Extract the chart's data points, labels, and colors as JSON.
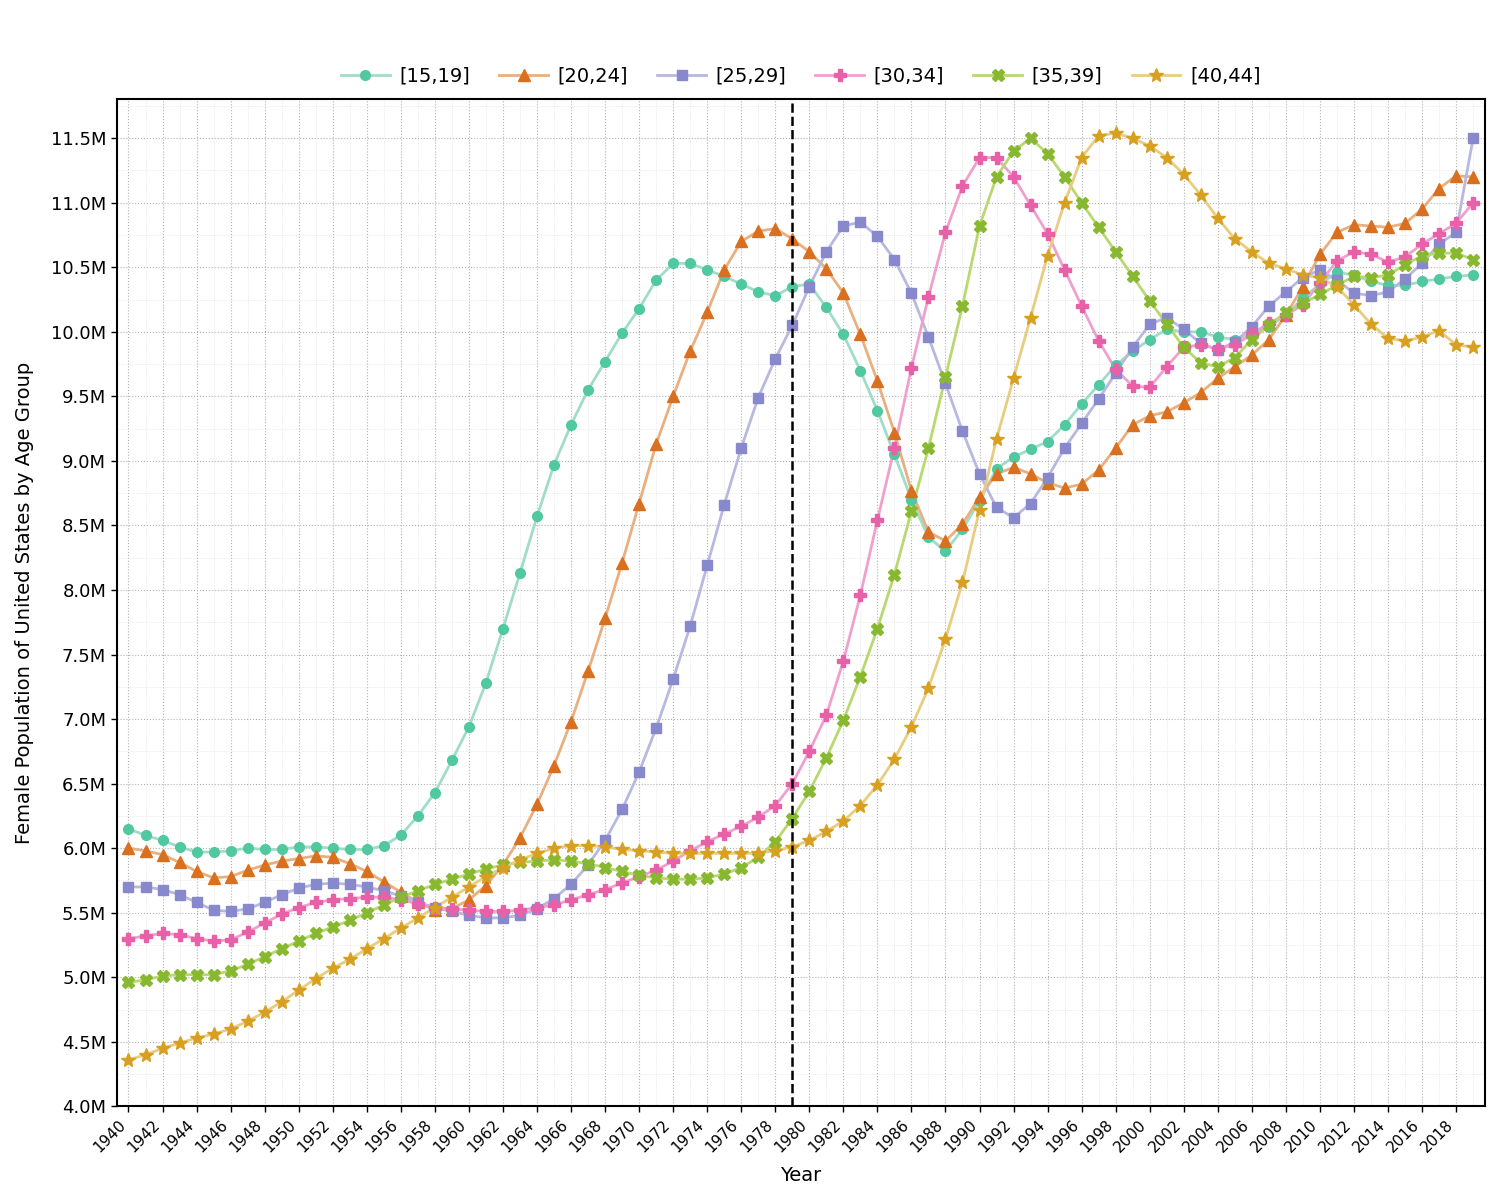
{
  "title": "",
  "ylabel": "Female Population of United States by Age Group",
  "xlabel": "Year",
  "dashed_line_year": 1979,
  "ylim": [
    4000000,
    11800000
  ],
  "yticks": [
    4000000,
    4500000,
    5000000,
    5500000,
    6000000,
    6500000,
    7000000,
    7500000,
    8000000,
    8500000,
    9000000,
    9500000,
    10000000,
    10500000,
    11000000,
    11500000
  ],
  "ytick_labels": [
    "4.0M",
    "4.5M",
    "5.0M",
    "5.5M",
    "6.0M",
    "6.5M",
    "7.0M",
    "7.5M",
    "8.0M",
    "8.5M",
    "9.0M",
    "9.5M",
    "10.0M",
    "10.5M",
    "11.0M",
    "11.5M"
  ],
  "series": [
    {
      "label": "[15,19]",
      "color": "#50c8a0",
      "line_color": "#a0dcc8",
      "marker": "o",
      "markersize": 7,
      "linewidth": 2.0,
      "years": [
        1940,
        1941,
        1942,
        1943,
        1944,
        1945,
        1946,
        1947,
        1948,
        1949,
        1950,
        1951,
        1952,
        1953,
        1954,
        1955,
        1956,
        1957,
        1958,
        1959,
        1960,
        1961,
        1962,
        1963,
        1964,
        1965,
        1966,
        1967,
        1968,
        1969,
        1970,
        1971,
        1972,
        1973,
        1974,
        1975,
        1976,
        1977,
        1978,
        1979,
        1980,
        1981,
        1982,
        1983,
        1984,
        1985,
        1986,
        1987,
        1988,
        1989,
        1990,
        1991,
        1992,
        1993,
        1994,
        1995,
        1996,
        1997,
        1998,
        1999,
        2000,
        2001,
        2002,
        2003,
        2004,
        2005,
        2006,
        2007,
        2008,
        2009,
        2010,
        2011,
        2012,
        2013,
        2014,
        2015,
        2016,
        2017,
        2018,
        2019
      ],
      "values": [
        6150000,
        6100000,
        6060000,
        6010000,
        5970000,
        5970000,
        5980000,
        6000000,
        5990000,
        5990000,
        6010000,
        6010000,
        6000000,
        5990000,
        5990000,
        6020000,
        6100000,
        6250000,
        6430000,
        6680000,
        6940000,
        7280000,
        7700000,
        8130000,
        8570000,
        8970000,
        9280000,
        9550000,
        9770000,
        9990000,
        10180000,
        10400000,
        10530000,
        10530000,
        10480000,
        10430000,
        10370000,
        10310000,
        10280000,
        10350000,
        10370000,
        10190000,
        9980000,
        9700000,
        9390000,
        9050000,
        8700000,
        8410000,
        8300000,
        8470000,
        8690000,
        8940000,
        9030000,
        9090000,
        9150000,
        9280000,
        9440000,
        9590000,
        9740000,
        9850000,
        9940000,
        10020000,
        10000000,
        10000000,
        9960000,
        9940000,
        9980000,
        10040000,
        10130000,
        10260000,
        10370000,
        10460000,
        10440000,
        10390000,
        10360000,
        10360000,
        10390000,
        10410000,
        10430000,
        10440000
      ]
    },
    {
      "label": "[20,24]",
      "color": "#d97020",
      "line_color": "#e8b080",
      "marker": "^",
      "markersize": 8,
      "linewidth": 2.0,
      "years": [
        1940,
        1941,
        1942,
        1943,
        1944,
        1945,
        1946,
        1947,
        1948,
        1949,
        1950,
        1951,
        1952,
        1953,
        1954,
        1955,
        1956,
        1957,
        1958,
        1959,
        1960,
        1961,
        1962,
        1963,
        1964,
        1965,
        1966,
        1967,
        1968,
        1969,
        1970,
        1971,
        1972,
        1973,
        1974,
        1975,
        1976,
        1977,
        1978,
        1979,
        1980,
        1981,
        1982,
        1983,
        1984,
        1985,
        1986,
        1987,
        1988,
        1989,
        1990,
        1991,
        1992,
        1993,
        1994,
        1995,
        1996,
        1997,
        1998,
        1999,
        2000,
        2001,
        2002,
        2003,
        2004,
        2005,
        2006,
        2007,
        2008,
        2009,
        2010,
        2011,
        2012,
        2013,
        2014,
        2015,
        2016,
        2017,
        2018,
        2019
      ],
      "values": [
        6000000,
        5980000,
        5950000,
        5890000,
        5820000,
        5770000,
        5780000,
        5830000,
        5870000,
        5900000,
        5920000,
        5940000,
        5930000,
        5880000,
        5820000,
        5740000,
        5660000,
        5580000,
        5520000,
        5530000,
        5600000,
        5710000,
        5870000,
        6080000,
        6340000,
        6640000,
        6980000,
        7370000,
        7780000,
        8210000,
        8670000,
        9130000,
        9500000,
        9850000,
        10150000,
        10480000,
        10700000,
        10780000,
        10800000,
        10720000,
        10620000,
        10490000,
        10300000,
        9980000,
        9620000,
        9220000,
        8770000,
        8450000,
        8380000,
        8510000,
        8720000,
        8900000,
        8950000,
        8900000,
        8830000,
        8790000,
        8820000,
        8930000,
        9100000,
        9280000,
        9350000,
        9380000,
        9450000,
        9530000,
        9640000,
        9730000,
        9820000,
        9940000,
        10130000,
        10350000,
        10600000,
        10770000,
        10830000,
        10820000,
        10810000,
        10840000,
        10950000,
        11110000,
        11210000,
        11200000
      ]
    },
    {
      "label": "[25,29]",
      "color": "#8888cc",
      "line_color": "#b8b8e0",
      "marker": "s",
      "markersize": 7,
      "linewidth": 2.0,
      "years": [
        1940,
        1941,
        1942,
        1943,
        1944,
        1945,
        1946,
        1947,
        1948,
        1949,
        1950,
        1951,
        1952,
        1953,
        1954,
        1955,
        1956,
        1957,
        1958,
        1959,
        1960,
        1961,
        1962,
        1963,
        1964,
        1965,
        1966,
        1967,
        1968,
        1969,
        1970,
        1971,
        1972,
        1973,
        1974,
        1975,
        1976,
        1977,
        1978,
        1979,
        1980,
        1981,
        1982,
        1983,
        1984,
        1985,
        1986,
        1987,
        1988,
        1989,
        1990,
        1991,
        1992,
        1993,
        1994,
        1995,
        1996,
        1997,
        1998,
        1999,
        2000,
        2001,
        2002,
        2003,
        2004,
        2005,
        2006,
        2007,
        2008,
        2009,
        2010,
        2011,
        2012,
        2013,
        2014,
        2015,
        2016,
        2017,
        2018,
        2019
      ],
      "values": [
        5700000,
        5700000,
        5680000,
        5640000,
        5580000,
        5520000,
        5510000,
        5530000,
        5580000,
        5640000,
        5690000,
        5720000,
        5730000,
        5720000,
        5700000,
        5670000,
        5630000,
        5580000,
        5540000,
        5510000,
        5480000,
        5460000,
        5460000,
        5480000,
        5530000,
        5610000,
        5720000,
        5870000,
        6060000,
        6300000,
        6590000,
        6930000,
        7310000,
        7720000,
        8190000,
        8660000,
        9100000,
        9490000,
        9790000,
        10050000,
        10350000,
        10620000,
        10820000,
        10850000,
        10740000,
        10560000,
        10300000,
        9960000,
        9600000,
        9230000,
        8900000,
        8640000,
        8560000,
        8670000,
        8870000,
        9100000,
        9290000,
        9480000,
        9680000,
        9880000,
        10060000,
        10110000,
        10020000,
        9910000,
        9860000,
        9920000,
        10040000,
        10200000,
        10310000,
        10420000,
        10480000,
        10400000,
        10300000,
        10280000,
        10310000,
        10410000,
        10530000,
        10680000,
        10770000,
        11500000
      ]
    },
    {
      "label": "[30,34]",
      "color": "#e860a8",
      "line_color": "#f0a0cc",
      "marker": "P",
      "markersize": 8,
      "linewidth": 2.0,
      "years": [
        1940,
        1941,
        1942,
        1943,
        1944,
        1945,
        1946,
        1947,
        1948,
        1949,
        1950,
        1951,
        1952,
        1953,
        1954,
        1955,
        1956,
        1957,
        1958,
        1959,
        1960,
        1961,
        1962,
        1963,
        1964,
        1965,
        1966,
        1967,
        1968,
        1969,
        1970,
        1971,
        1972,
        1973,
        1974,
        1975,
        1976,
        1977,
        1978,
        1979,
        1980,
        1981,
        1982,
        1983,
        1984,
        1985,
        1986,
        1987,
        1988,
        1989,
        1990,
        1991,
        1992,
        1993,
        1994,
        1995,
        1996,
        1997,
        1998,
        1999,
        2000,
        2001,
        2002,
        2003,
        2004,
        2005,
        2006,
        2007,
        2008,
        2009,
        2010,
        2011,
        2012,
        2013,
        2014,
        2015,
        2016,
        2017,
        2018,
        2019
      ],
      "values": [
        5300000,
        5320000,
        5340000,
        5330000,
        5300000,
        5280000,
        5290000,
        5350000,
        5420000,
        5490000,
        5540000,
        5580000,
        5600000,
        5610000,
        5620000,
        5620000,
        5600000,
        5570000,
        5540000,
        5530000,
        5520000,
        5510000,
        5510000,
        5520000,
        5540000,
        5560000,
        5600000,
        5640000,
        5680000,
        5730000,
        5780000,
        5830000,
        5900000,
        5980000,
        6050000,
        6110000,
        6170000,
        6240000,
        6330000,
        6500000,
        6750000,
        7030000,
        7450000,
        7960000,
        8540000,
        9100000,
        9720000,
        10270000,
        10770000,
        11130000,
        11350000,
        11350000,
        11200000,
        10980000,
        10760000,
        10480000,
        10200000,
        9930000,
        9710000,
        9580000,
        9570000,
        9730000,
        9880000,
        9900000,
        9870000,
        9900000,
        9980000,
        10070000,
        10130000,
        10210000,
        10380000,
        10550000,
        10620000,
        10600000,
        10540000,
        10580000,
        10680000,
        10760000,
        10840000,
        11000000
      ]
    },
    {
      "label": "[35,39]",
      "color": "#88b830",
      "line_color": "#b8d870",
      "marker": "X",
      "markersize": 8,
      "linewidth": 2.0,
      "years": [
        1940,
        1941,
        1942,
        1943,
        1944,
        1945,
        1946,
        1947,
        1948,
        1949,
        1950,
        1951,
        1952,
        1953,
        1954,
        1955,
        1956,
        1957,
        1958,
        1959,
        1960,
        1961,
        1962,
        1963,
        1964,
        1965,
        1966,
        1967,
        1968,
        1969,
        1970,
        1971,
        1972,
        1973,
        1974,
        1975,
        1976,
        1977,
        1978,
        1979,
        1980,
        1981,
        1982,
        1983,
        1984,
        1985,
        1986,
        1987,
        1988,
        1989,
        1990,
        1991,
        1992,
        1993,
        1994,
        1995,
        1996,
        1997,
        1998,
        1999,
        2000,
        2001,
        2002,
        2003,
        2004,
        2005,
        2006,
        2007,
        2008,
        2009,
        2010,
        2011,
        2012,
        2013,
        2014,
        2015,
        2016,
        2017,
        2018,
        2019
      ],
      "values": [
        4960000,
        4980000,
        5010000,
        5020000,
        5020000,
        5020000,
        5050000,
        5100000,
        5160000,
        5220000,
        5280000,
        5340000,
        5390000,
        5440000,
        5500000,
        5560000,
        5620000,
        5670000,
        5720000,
        5760000,
        5800000,
        5840000,
        5870000,
        5890000,
        5900000,
        5910000,
        5900000,
        5880000,
        5850000,
        5820000,
        5790000,
        5770000,
        5760000,
        5760000,
        5770000,
        5800000,
        5850000,
        5930000,
        6050000,
        6230000,
        6440000,
        6700000,
        6990000,
        7330000,
        7700000,
        8120000,
        8610000,
        9100000,
        9650000,
        10200000,
        10820000,
        11200000,
        11400000,
        11500000,
        11380000,
        11200000,
        11000000,
        10810000,
        10620000,
        10430000,
        10240000,
        10060000,
        9880000,
        9760000,
        9730000,
        9800000,
        9940000,
        10050000,
        10150000,
        10220000,
        10290000,
        10360000,
        10430000,
        10420000,
        10440000,
        10520000,
        10590000,
        10610000,
        10610000,
        10560000
      ]
    },
    {
      "label": "[40,44]",
      "color": "#d8a020",
      "line_color": "#e8cc80",
      "marker": "*",
      "markersize": 10,
      "linewidth": 2.0,
      "years": [
        1940,
        1941,
        1942,
        1943,
        1944,
        1945,
        1946,
        1947,
        1948,
        1949,
        1950,
        1951,
        1952,
        1953,
        1954,
        1955,
        1956,
        1957,
        1958,
        1959,
        1960,
        1961,
        1962,
        1963,
        1964,
        1965,
        1966,
        1967,
        1968,
        1969,
        1970,
        1971,
        1972,
        1973,
        1974,
        1975,
        1976,
        1977,
        1978,
        1979,
        1980,
        1981,
        1982,
        1983,
        1984,
        1985,
        1986,
        1987,
        1988,
        1989,
        1990,
        1991,
        1992,
        1993,
        1994,
        1995,
        1996,
        1997,
        1998,
        1999,
        2000,
        2001,
        2002,
        2003,
        2004,
        2005,
        2006,
        2007,
        2008,
        2009,
        2010,
        2011,
        2012,
        2013,
        2014,
        2015,
        2016,
        2017,
        2018,
        2019
      ],
      "values": [
        4360000,
        4400000,
        4450000,
        4490000,
        4530000,
        4560000,
        4600000,
        4660000,
        4730000,
        4810000,
        4900000,
        4990000,
        5070000,
        5140000,
        5220000,
        5300000,
        5380000,
        5460000,
        5540000,
        5620000,
        5700000,
        5780000,
        5850000,
        5910000,
        5960000,
        6000000,
        6020000,
        6020000,
        6010000,
        5990000,
        5980000,
        5970000,
        5960000,
        5960000,
        5960000,
        5960000,
        5960000,
        5960000,
        5980000,
        6010000,
        6060000,
        6130000,
        6210000,
        6330000,
        6490000,
        6690000,
        6940000,
        7240000,
        7620000,
        8060000,
        8620000,
        9170000,
        9640000,
        10110000,
        10590000,
        11000000,
        11350000,
        11520000,
        11540000,
        11500000,
        11440000,
        11350000,
        11220000,
        11060000,
        10880000,
        10720000,
        10620000,
        10530000,
        10490000,
        10440000,
        10420000,
        10350000,
        10210000,
        10060000,
        9950000,
        9930000,
        9960000,
        10010000,
        9900000,
        9880000
      ]
    }
  ],
  "legend_loc": "upper center",
  "legend_ncol": 6,
  "bg_color": "#ffffff",
  "grid_color": "#cccccc",
  "xlim_left": 1939.3,
  "xlim_right": 2019.7
}
